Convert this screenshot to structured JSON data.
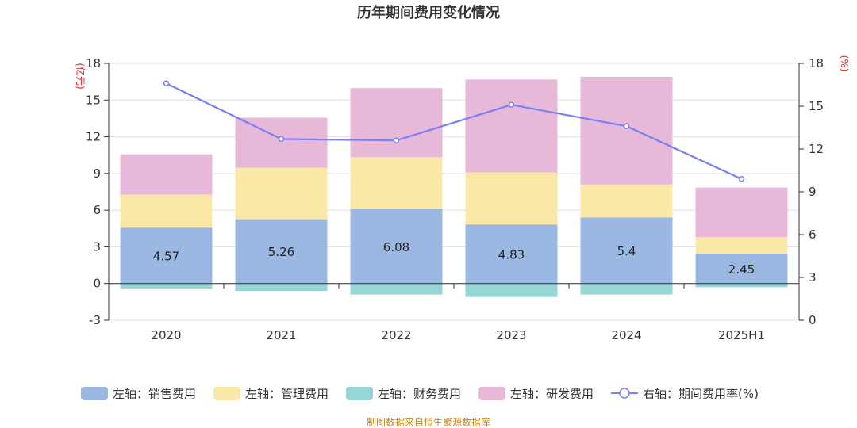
{
  "chart_data": {
    "type": "bar",
    "title": "历年期间费用变化情况",
    "categories": [
      "2020",
      "2021",
      "2022",
      "2023",
      "2024",
      "2025H1"
    ],
    "y_left": {
      "label": "(亿元)",
      "range": [
        -3,
        18
      ],
      "ticks": [
        "-3",
        "0",
        "3",
        "6",
        "9",
        "12",
        "15",
        "18"
      ]
    },
    "y_right": {
      "label": "(%)",
      "range": [
        0,
        18
      ],
      "ticks": [
        "0",
        "3",
        "6",
        "9",
        "12",
        "15",
        "18"
      ]
    },
    "series": [
      {
        "name": "左轴：销售费用",
        "type": "stacked-bar",
        "axis": "left",
        "color": "#9bb8e3",
        "values": [
          4.57,
          5.26,
          6.08,
          4.83,
          5.4,
          2.45
        ],
        "labels": [
          "4.57",
          "5.26",
          "6.08",
          "4.83",
          "5.4",
          "2.45"
        ]
      },
      {
        "name": "左轴：管理费用",
        "type": "stacked-bar",
        "axis": "left",
        "color": "#f9e8a8",
        "values": [
          2.7,
          4.2,
          4.25,
          4.25,
          2.7,
          1.35
        ]
      },
      {
        "name": "左轴：财务费用",
        "type": "stacked-bar",
        "axis": "left",
        "color": "#96d6d4",
        "values": [
          -0.4,
          -0.6,
          -0.9,
          -1.1,
          -0.9,
          -0.3
        ]
      },
      {
        "name": "左轴：研发费用",
        "type": "stacked-bar",
        "axis": "left",
        "color": "#e8b8d9",
        "values": [
          3.3,
          4.1,
          5.65,
          7.6,
          8.8,
          4.05
        ]
      },
      {
        "name": "右轴：期间费用率(%)",
        "type": "line",
        "axis": "right",
        "color": "#7b7ff0",
        "values": [
          16.6,
          12.7,
          12.6,
          15.1,
          13.6,
          9.9
        ]
      }
    ],
    "grid": true,
    "legend_position": "bottom",
    "source": "制图数据来自恒生聚源数据库"
  }
}
